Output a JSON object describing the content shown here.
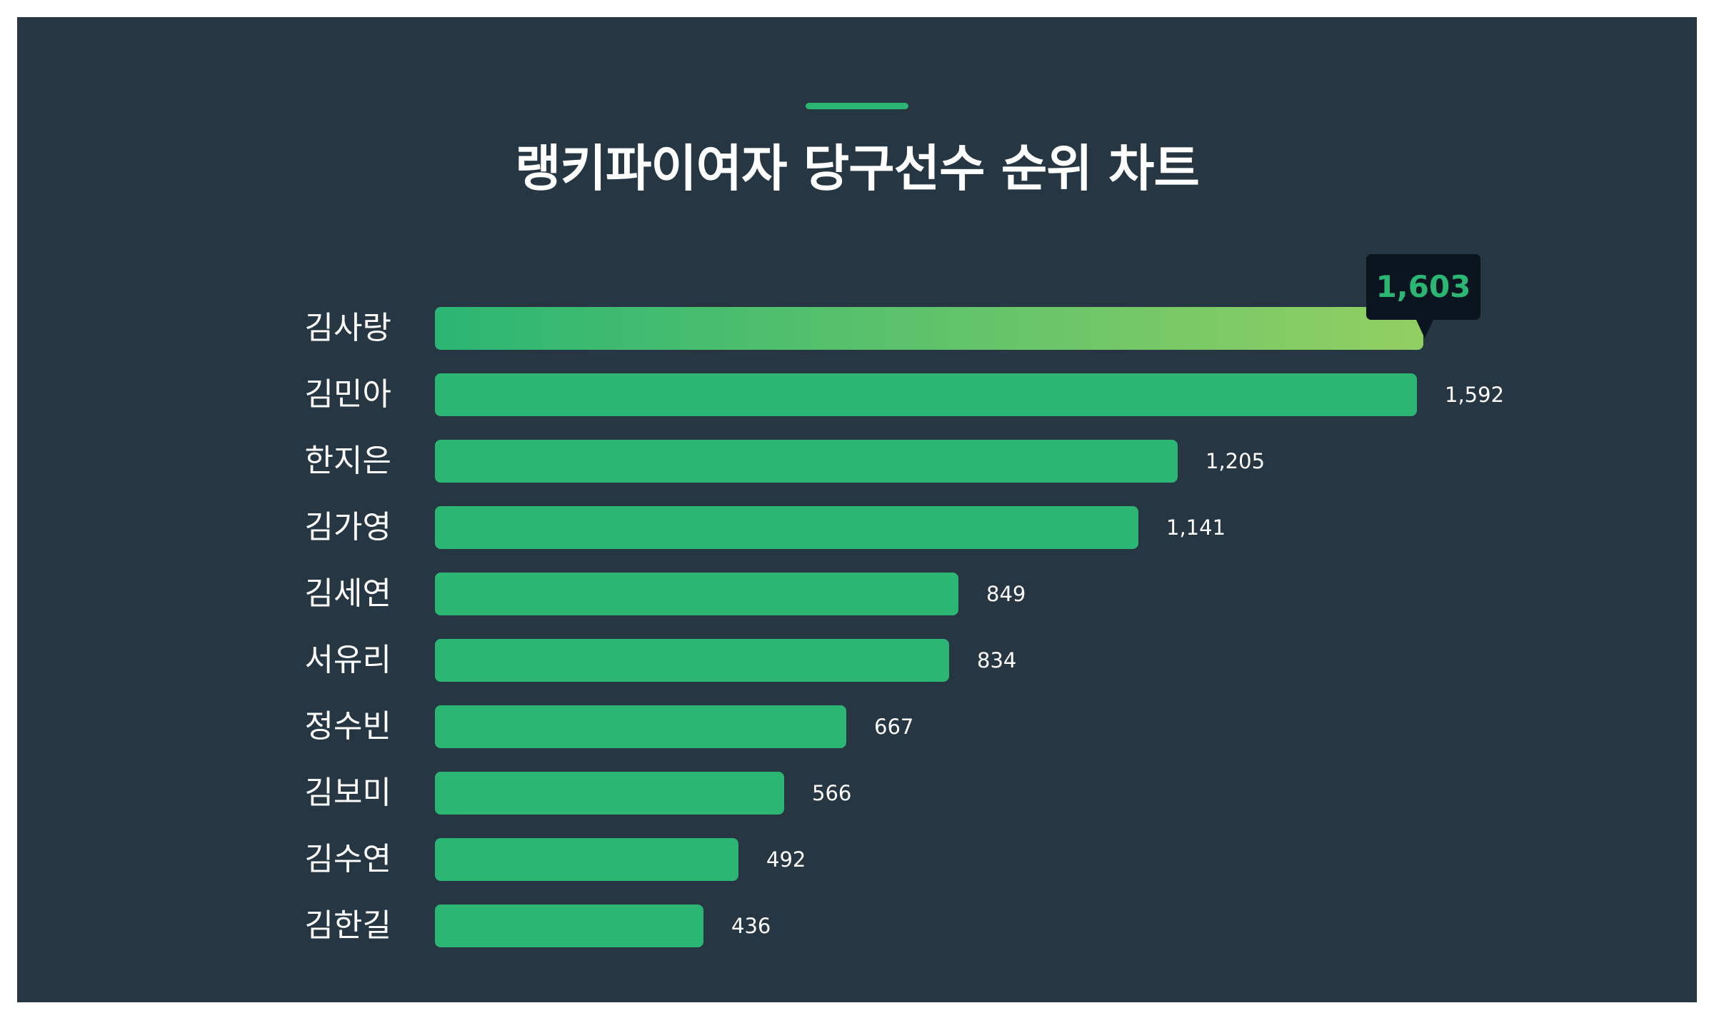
{
  "title": "랭키파이여자 당구선수 순위 차트",
  "colors": {
    "background": "#263642",
    "bar": "#2bb673",
    "bar_top_gradient_start": "#2bb673",
    "bar_top_gradient_end": "#92cf62",
    "accent": "#2bb673",
    "tooltip_bg": "#0a1520",
    "tooltip_text": "#2bb673",
    "text": "#ffffff"
  },
  "tooltip": {
    "label": "1,603"
  },
  "rows": [
    {
      "name": "김사랑",
      "value": 1603,
      "value_label": "1,603"
    },
    {
      "name": "김민아",
      "value": 1592,
      "value_label": "1,592"
    },
    {
      "name": "한지은",
      "value": 1205,
      "value_label": "1,205"
    },
    {
      "name": "김가영",
      "value": 1141,
      "value_label": "1,141"
    },
    {
      "name": "김세연",
      "value": 849,
      "value_label": "849"
    },
    {
      "name": "서유리",
      "value": 834,
      "value_label": "834"
    },
    {
      "name": "정수빈",
      "value": 667,
      "value_label": "667"
    },
    {
      "name": "김보미",
      "value": 566,
      "value_label": "566"
    },
    {
      "name": "김수연",
      "value": 492,
      "value_label": "492"
    },
    {
      "name": "김한길",
      "value": 436,
      "value_label": "436"
    }
  ],
  "chart_data": {
    "type": "bar",
    "orientation": "horizontal",
    "title": "랭키파이여자 당구선수 순위 차트",
    "categories": [
      "김사랑",
      "김민아",
      "한지은",
      "김가영",
      "김세연",
      "서유리",
      "정수빈",
      "김보미",
      "김수연",
      "김한길"
    ],
    "values": [
      1603,
      1592,
      1205,
      1141,
      849,
      834,
      667,
      566,
      492,
      436
    ],
    "xlabel": "",
    "ylabel": "",
    "grid": false,
    "legend": null,
    "annotations": [
      {
        "category": "김사랑",
        "text": "1,603",
        "style": "tooltip"
      }
    ]
  }
}
